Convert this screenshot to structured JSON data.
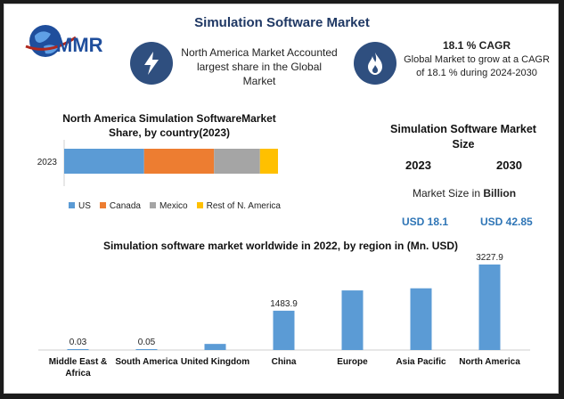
{
  "header": {
    "title": "Simulation Software Market"
  },
  "logo": {
    "text": "MMR"
  },
  "info_left": {
    "icon": "lightning-icon",
    "text": "North America Market Accounted largest share in the Global Market"
  },
  "info_right": {
    "icon": "flame-icon",
    "heading": "18.1 % CAGR",
    "text": "Global Market to grow at a CAGR of 18.1 % during 2024-2030"
  },
  "size_panel": {
    "title": "Simulation Software Market Size",
    "year1": "2023",
    "year2": "2030",
    "label_prefix": "Market Size in ",
    "label_bold": "Billion",
    "value1": "USD 18.1",
    "value2": "USD 42.85"
  },
  "colors": {
    "accent": "#2f4f7f",
    "blue": "#5b9bd5",
    "orange": "#ed7d31",
    "gray": "#a5a5a5",
    "yellow": "#ffc000",
    "value_blue": "#2e75b6"
  },
  "chart_data": [
    {
      "type": "bar",
      "orientation": "horizontal-stacked",
      "title": "North America Simulation SoftwareMarket Share, by country(2023)",
      "categories": [
        "2023"
      ],
      "series": [
        {
          "name": "US",
          "values": [
            40
          ],
          "color": "#5b9bd5"
        },
        {
          "name": "Canada",
          "values": [
            35
          ],
          "color": "#ed7d31"
        },
        {
          "name": "Mexico",
          "values": [
            23
          ],
          "color": "#a5a5a5"
        },
        {
          "name": "Rest of N. America",
          "values": [
            9
          ],
          "color": "#ffc000"
        }
      ],
      "xlim": [
        0,
        107
      ],
      "legend": "bottom"
    },
    {
      "type": "bar",
      "title": "Simulation software market worldwide in 2022, by region in (Mn. USD)",
      "categories": [
        "Middle East & Africa",
        "South America",
        "United Kingdom",
        "China",
        "Europe",
        "Asia Pacific",
        "North America"
      ],
      "values": [
        0.03,
        0.05,
        230,
        1483.9,
        2250,
        2330,
        3227.9
      ],
      "data_labels": [
        "0.03",
        "0.05",
        "",
        "1483.9",
        "",
        "",
        "3227.9"
      ],
      "ylim": [
        0,
        3227.9
      ],
      "color": "#5b9bd5"
    }
  ]
}
